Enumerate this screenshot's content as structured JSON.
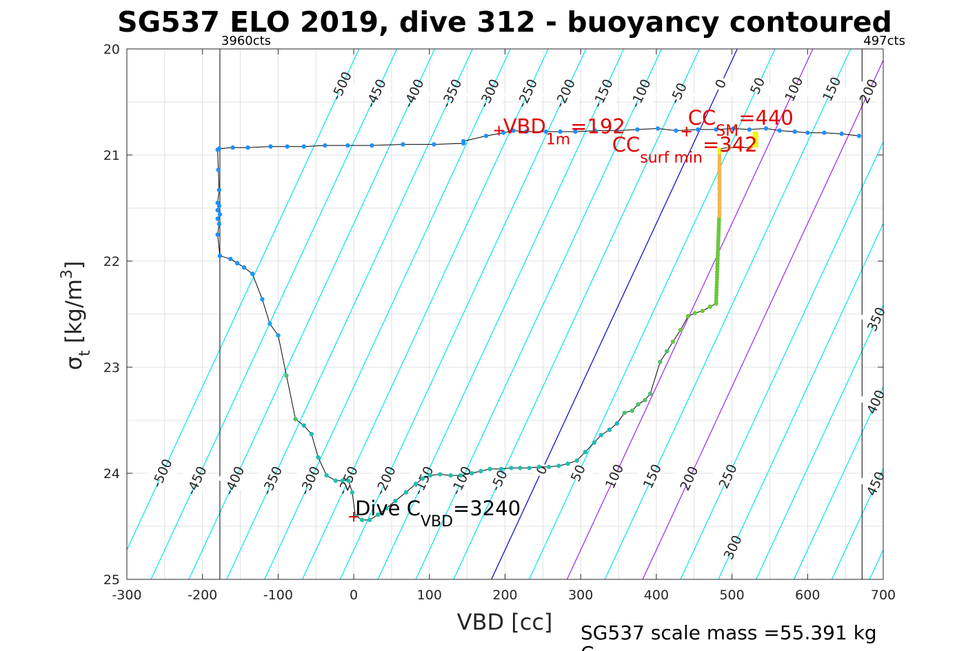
{
  "chart_data": {
    "type": "scatter",
    "title": "SG537 ELO 2019, dive 312 - buoyancy contoured",
    "xlabel": "VBD [cc]",
    "ylabel": "σt [kg/m3]",
    "xlim": [
      -300,
      700
    ],
    "ylim": [
      25,
      20
    ],
    "y_reversed": true,
    "xticks": [
      "-300",
      "-200",
      "-100",
      "0",
      "100",
      "200",
      "300",
      "400",
      "500",
      "600",
      "700"
    ],
    "yticks": [
      "20",
      "21",
      "22",
      "23",
      "24",
      "25"
    ],
    "grid": true,
    "vbd_limits": [
      {
        "x": -177,
        "label": "3960cts"
      },
      {
        "x": 672,
        "label": "497cts"
      }
    ],
    "contour_slope_cc_per_sigma": -65,
    "contours": [
      {
        "value": -500,
        "color": "#00e5ee",
        "labels": [
          {
            "text": "-500",
            "sigma": 20.35
          },
          {
            "text": "-500",
            "sigma": 24.0
          }
        ]
      },
      {
        "value": -450,
        "color": "#00e5ee",
        "labels": [
          {
            "text": "-450",
            "sigma": 20.42
          },
          {
            "text": "-450",
            "sigma": 24.07
          }
        ]
      },
      {
        "value": -400,
        "color": "#00e5ee",
        "labels": [
          {
            "text": "-400",
            "sigma": 20.42
          },
          {
            "text": "-400",
            "sigma": 24.07
          }
        ]
      },
      {
        "value": -350,
        "color": "#00e5ee",
        "labels": [
          {
            "text": "-350",
            "sigma": 20.42
          },
          {
            "text": "-350",
            "sigma": 24.07
          }
        ]
      },
      {
        "value": -300,
        "color": "#00e5ee",
        "labels": [
          {
            "text": "-300",
            "sigma": 20.42
          },
          {
            "text": "-300",
            "sigma": 24.07
          }
        ]
      },
      {
        "value": -250,
        "color": "#00e5ee",
        "labels": [
          {
            "text": "-250",
            "sigma": 20.42
          },
          {
            "text": "-250",
            "sigma": 24.07
          }
        ]
      },
      {
        "value": -200,
        "color": "#00e5ee",
        "labels": [
          {
            "text": "-200",
            "sigma": 20.42
          },
          {
            "text": "-200",
            "sigma": 24.07
          }
        ]
      },
      {
        "value": -150,
        "color": "#00e5ee",
        "labels": [
          {
            "text": "-150",
            "sigma": 20.42
          },
          {
            "text": "-150",
            "sigma": 24.07
          }
        ]
      },
      {
        "value": -100,
        "color": "#00e5ee",
        "labels": [
          {
            "text": "-100",
            "sigma": 20.42
          },
          {
            "text": "-100",
            "sigma": 24.07
          }
        ]
      },
      {
        "value": -50,
        "color": "#00e5ee",
        "labels": [
          {
            "text": "-50",
            "sigma": 20.42
          },
          {
            "text": "-50",
            "sigma": 24.07
          }
        ]
      },
      {
        "value": 0,
        "color": "#0000cc",
        "labels": [
          {
            "text": "0",
            "sigma": 20.33
          },
          {
            "text": "0",
            "sigma": 23.97
          }
        ]
      },
      {
        "value": 50,
        "color": "#00e5ee",
        "labels": [
          {
            "text": "50",
            "sigma": 20.35
          },
          {
            "text": "50",
            "sigma": 24.0
          }
        ]
      },
      {
        "value": 100,
        "color": "#a020f0",
        "labels": [
          {
            "text": "100",
            "sigma": 20.38
          },
          {
            "text": "100",
            "sigma": 24.03
          }
        ]
      },
      {
        "value": 150,
        "color": "#00e5ee",
        "labels": [
          {
            "text": "150",
            "sigma": 20.38
          },
          {
            "text": "150",
            "sigma": 24.03
          }
        ]
      },
      {
        "value": 200,
        "color": "#a020f0",
        "labels": [
          {
            "text": "200",
            "sigma": 20.4
          },
          {
            "text": "200",
            "sigma": 24.05
          }
        ]
      },
      {
        "value": 250,
        "color": "#00e5ee",
        "labels": [
          {
            "text": "250",
            "sigma": 20.4
          },
          {
            "text": "250",
            "sigma": 24.03
          }
        ]
      },
      {
        "value": 300,
        "color": "#00e5ee",
        "labels": [
          {
            "text": "300",
            "sigma": 24.7
          }
        ]
      },
      {
        "value": 350,
        "color": "#00e5ee",
        "labels": [
          {
            "text": "350",
            "sigma": 22.55
          }
        ]
      },
      {
        "value": 400,
        "color": "#00e5ee",
        "labels": [
          {
            "text": "400",
            "sigma": 23.33
          }
        ]
      },
      {
        "value": 450,
        "color": "#00e5ee",
        "labels": [
          {
            "text": "450",
            "sigma": 24.1
          }
        ]
      },
      {
        "value": 500,
        "color": "#00e5ee",
        "labels": []
      },
      {
        "value": 550,
        "color": "#00e5ee",
        "labels": []
      }
    ],
    "series": [
      {
        "points": [
          [
            -177,
            21.95
          ],
          [
            -163,
            21.98
          ],
          [
            -154,
            22.02
          ],
          [
            -145,
            22.06
          ],
          [
            -134,
            22.12
          ],
          [
            -121,
            22.36
          ],
          [
            -111,
            22.59
          ],
          [
            -100,
            22.7
          ],
          [
            -89,
            23.08
          ],
          [
            -77,
            23.49
          ],
          [
            -66,
            23.55
          ],
          [
            -56,
            23.63
          ],
          [
            -47,
            23.85
          ],
          [
            -36,
            24.02
          ],
          [
            -24,
            24.07
          ],
          [
            -15,
            24.07
          ],
          [
            -7,
            24.07
          ],
          [
            -2,
            24.18
          ],
          [
            2,
            24.4
          ],
          [
            11,
            24.44
          ],
          [
            21,
            24.44
          ],
          [
            32,
            24.39
          ],
          [
            43,
            24.33
          ],
          [
            55,
            24.26
          ],
          [
            69,
            24.18
          ],
          [
            82,
            24.1
          ],
          [
            91,
            24.05
          ],
          [
            101,
            24.02
          ],
          [
            114,
            24.01
          ],
          [
            128,
            24.02
          ],
          [
            141,
            24.02
          ],
          [
            156,
            24.0
          ],
          [
            168,
            23.98
          ],
          [
            180,
            23.96
          ],
          [
            195,
            23.96
          ],
          [
            208,
            23.95
          ],
          [
            220,
            23.95
          ],
          [
            232,
            23.95
          ],
          [
            245,
            23.94
          ],
          [
            258,
            23.94
          ],
          [
            271,
            23.93
          ],
          [
            283,
            23.91
          ],
          [
            295,
            23.88
          ],
          [
            306,
            23.8
          ],
          [
            318,
            23.71
          ],
          [
            327,
            23.64
          ],
          [
            338,
            23.59
          ],
          [
            348,
            23.53
          ],
          [
            358,
            23.43
          ],
          [
            368,
            23.41
          ],
          [
            376,
            23.35
          ],
          [
            385,
            23.31
          ],
          [
            392,
            23.25
          ],
          [
            405,
            22.95
          ],
          [
            414,
            22.85
          ],
          [
            422,
            22.76
          ],
          [
            432,
            22.65
          ],
          [
            442,
            22.52
          ],
          [
            451,
            22.49
          ],
          [
            461,
            22.47
          ],
          [
            471,
            22.43
          ],
          [
            479,
            22.4
          ]
        ]
      },
      {
        "points": [
          [
            -177,
            21.95
          ],
          [
            -180,
            21.75
          ],
          [
            -178,
            21.65
          ],
          [
            -180,
            21.6
          ],
          [
            -177,
            21.56
          ],
          [
            -180,
            21.52
          ],
          [
            -178,
            21.48
          ],
          [
            -180,
            21.45
          ],
          [
            -178,
            21.33
          ],
          [
            -179,
            21.14
          ],
          [
            -180,
            20.95
          ],
          [
            -178,
            20.94
          ],
          [
            -160,
            20.93
          ],
          [
            -140,
            20.93
          ],
          [
            -110,
            20.92
          ],
          [
            -88,
            20.92
          ],
          [
            -66,
            20.92
          ],
          [
            -38,
            20.91
          ],
          [
            -8,
            20.91
          ],
          [
            24,
            20.91
          ],
          [
            65,
            20.9
          ],
          [
            106,
            20.9
          ],
          [
            145,
            20.89
          ],
          [
            145,
            20.87
          ],
          [
            175,
            20.82
          ],
          [
            198,
            20.79
          ],
          [
            211,
            20.77
          ],
          [
            228,
            20.78
          ],
          [
            254,
            20.78
          ],
          [
            273,
            20.78
          ],
          [
            293,
            20.78
          ],
          [
            319,
            20.77
          ],
          [
            348,
            20.77
          ],
          [
            375,
            20.76
          ],
          [
            402,
            20.75
          ],
          [
            426,
            20.77
          ],
          [
            455,
            20.76
          ],
          [
            479,
            20.76
          ],
          [
            502,
            20.75
          ],
          [
            523,
            20.76
          ],
          [
            545,
            20.75
          ],
          [
            563,
            20.77
          ],
          [
            583,
            20.78
          ],
          [
            600,
            20.79
          ],
          [
            622,
            20.79
          ],
          [
            645,
            20.8
          ],
          [
            668,
            20.82
          ]
        ]
      }
    ],
    "surface_segment": [
      [
        479,
        22.4
      ],
      [
        481,
        22.2
      ],
      [
        482,
        21.9
      ],
      [
        482,
        21.7
      ],
      [
        483,
        21.6
      ],
      [
        484,
        21.3
      ],
      [
        484,
        21.1
      ],
      [
        484,
        20.94
      ],
      [
        496,
        20.93
      ],
      [
        510,
        20.93
      ],
      [
        524,
        20.93
      ],
      [
        531,
        20.92
      ],
      [
        531,
        20.85
      ],
      [
        531,
        20.78
      ]
    ],
    "markers": [
      {
        "x": 192,
        "y": 20.77,
        "label": "VBD",
        "sub": "1m",
        "value": "=192"
      },
      {
        "x": 440,
        "y": 20.78,
        "label": "CC",
        "sub": "SM",
        "value": "=440"
      },
      {
        "x": 0,
        "y": 24.41,
        "label": "Dive C",
        "sub": "VBD",
        "value": "=3240"
      }
    ],
    "annotations": [
      {
        "label": "CC",
        "sub": "surf min",
        "value": "=342"
      }
    ],
    "footer": [
      "SG537 scale mass =55.391 kg",
      "C"
    ],
    "colors": {
      "grid": "#d9d9d9",
      "path": "#000000",
      "pt_shallow": "#1e90ff",
      "pt_mid": "#20c0b0",
      "pt_deep": "#6bc83c",
      "pt_surface": "#f2b84b",
      "pt_yellow": "#f5f50a",
      "marker": "#e00000"
    }
  }
}
